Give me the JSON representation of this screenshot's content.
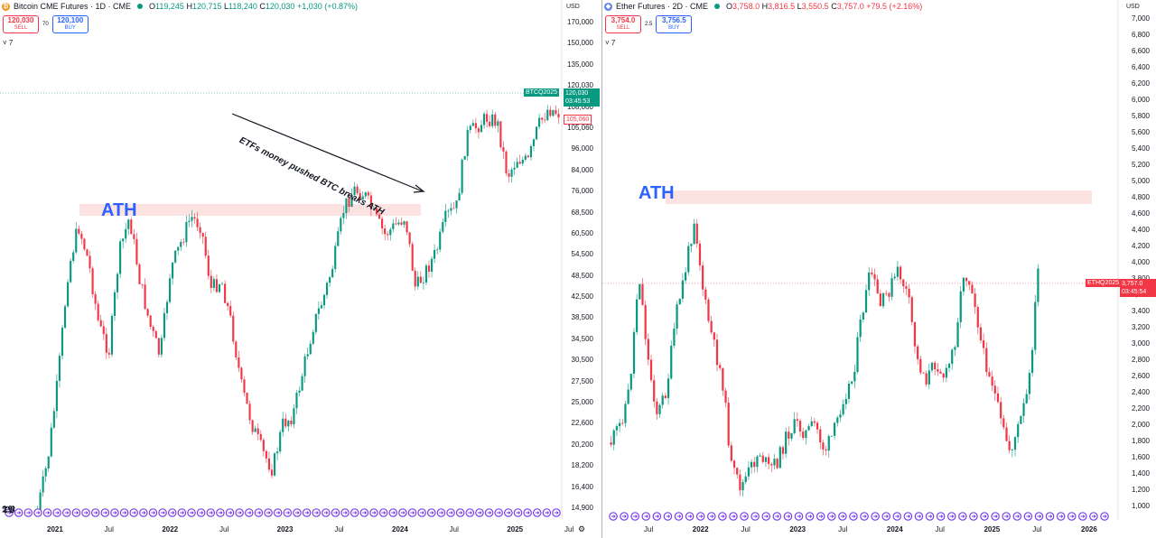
{
  "left_chart": {
    "title": "Bitcoin CME Futures · 1D · CME",
    "coin_glyph": "₿",
    "ohlc": [
      {
        "k": "O",
        "v": "119,245"
      },
      {
        "k": "H",
        "v": "120,715"
      },
      {
        "k": "L",
        "v": "118,240"
      },
      {
        "k": "C",
        "v": "120,030"
      },
      {
        "k": "",
        "v": "+1,030 (+0.87%)"
      }
    ],
    "sell_price": "120,030",
    "sell_label": "SELL",
    "buy_price": "120,100",
    "buy_label": "BUY",
    "spread": "70",
    "indicator_toggle": "˅ 7",
    "currency": "USD",
    "y_ticks": [
      "170,000",
      "150,000",
      "135,000",
      "120,030",
      "108,000",
      "105,060",
      "96,000",
      "84,000",
      "76,000",
      "68,500",
      "60,500",
      "54,500",
      "48,500",
      "42,500",
      "38,500",
      "34,500",
      "30,500",
      "27,500",
      "25,000",
      "22,600",
      "20,200",
      "18,200",
      "16,400",
      "14,900"
    ],
    "x_labels": [
      "2021",
      "Jul",
      "2022",
      "Jul",
      "2023",
      "Jul",
      "2024",
      "Jul",
      "2025",
      "Jul"
    ],
    "price_tag": {
      "symbol": "BTCQ2025",
      "price": "120,030",
      "countdown": "03:45:53"
    },
    "secondary_tag": "105,060",
    "annotation": "ETFs money pushed BTC breaks ATH",
    "ath_label": "ATH",
    "colors": {
      "up": "#089981",
      "down": "#f23645",
      "zone": "#fde2e2",
      "event": "#7b3fe4"
    }
  },
  "right_chart": {
    "title": "Ether Futures · 2D · CME",
    "coin_glyph": "◆",
    "ohlc": [
      {
        "k": "O",
        "v": "3,758.0"
      },
      {
        "k": "H",
        "v": "3,816.5"
      },
      {
        "k": "L",
        "v": "3,550.5"
      },
      {
        "k": "C",
        "v": "3,757.0"
      },
      {
        "k": "",
        "v": "+79.5 (+2.16%)"
      }
    ],
    "sell_price": "3,754.0",
    "sell_label": "SELL",
    "buy_price": "3,756.5",
    "buy_label": "BUY",
    "spread": "2.5",
    "indicator_toggle": "˅ 7",
    "currency": "USD",
    "y_ticks": [
      "7,000",
      "6,800",
      "6,600",
      "6,400",
      "6,200",
      "6,000",
      "5,800",
      "5,600",
      "5,400",
      "5,200",
      "5,000",
      "4,800",
      "4,600",
      "4,400",
      "4,200",
      "4,000",
      "3,800",
      "3,600",
      "3,400",
      "3,200",
      "3,000",
      "2,800",
      "2,600",
      "2,400",
      "2,200",
      "2,000",
      "1,800",
      "1,600",
      "1,400",
      "1,200",
      "1,000"
    ],
    "x_labels": [
      "Jul",
      "2022",
      "Jul",
      "2023",
      "Jul",
      "2024",
      "Jul",
      "2025",
      "Jul",
      "2026"
    ],
    "price_tag": {
      "symbol": "ETHQ2025",
      "price": "3,757.0",
      "countdown": "03:45:54"
    },
    "ath_label": "ATH"
  }
}
